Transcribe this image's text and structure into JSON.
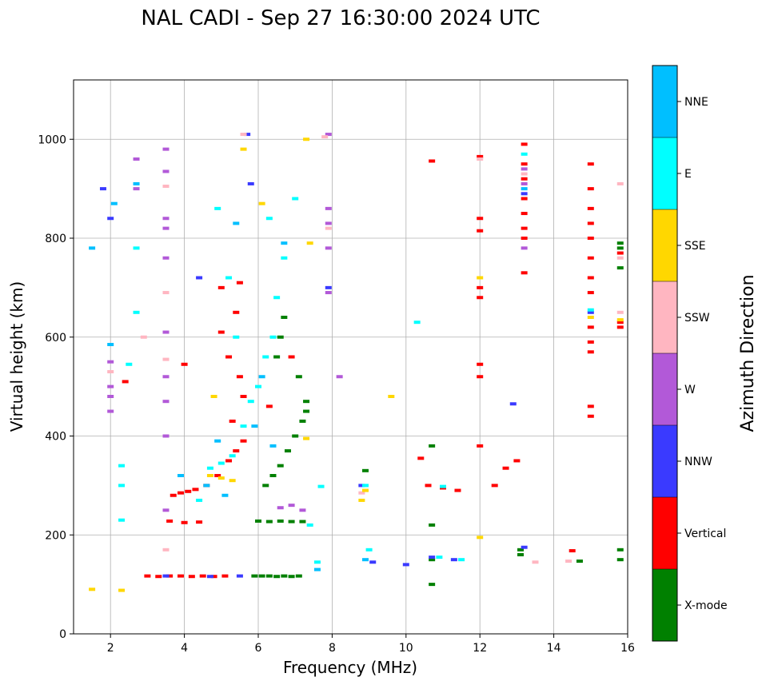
{
  "chart_data": {
    "type": "scatter",
    "title": "NAL CADI - Sep 27 16:30:00 2024 UTC",
    "xlabel": "Frequency (MHz)",
    "ylabel": "Virtual height (km)",
    "xlim": [
      1,
      16
    ],
    "ylim": [
      0,
      1120
    ],
    "xticks": [
      2,
      4,
      6,
      8,
      10,
      12,
      14,
      16
    ],
    "yticks": [
      0,
      200,
      400,
      600,
      800,
      1000
    ],
    "grid": true,
    "colorbar": {
      "label": "Azimuth Direction",
      "categories": [
        {
          "name": "X-mode",
          "color": "#008000"
        },
        {
          "name": "Vertical",
          "color": "#ff0000"
        },
        {
          "name": "NNW",
          "color": "#3a3aff"
        },
        {
          "name": "W",
          "color": "#b259d8"
        },
        {
          "name": "SSW",
          "color": "#ffb6c1"
        },
        {
          "name": "SSE",
          "color": "#ffd700"
        },
        {
          "name": "E",
          "color": "#00ffff"
        },
        {
          "name": "NNE",
          "color": "#00bfff"
        }
      ]
    },
    "series": [
      {
        "name": "X-mode",
        "points": [
          [
            5.9,
            117
          ],
          [
            6.1,
            117
          ],
          [
            6.3,
            117
          ],
          [
            6.5,
            116
          ],
          [
            6.7,
            117
          ],
          [
            6.9,
            116
          ],
          [
            7.1,
            117
          ],
          [
            6.0,
            228
          ],
          [
            6.3,
            227
          ],
          [
            6.6,
            228
          ],
          [
            6.9,
            227
          ],
          [
            7.2,
            227
          ],
          [
            6.2,
            300
          ],
          [
            6.4,
            320
          ],
          [
            6.6,
            340
          ],
          [
            6.8,
            370
          ],
          [
            7.0,
            400
          ],
          [
            7.2,
            430
          ],
          [
            7.3,
            450
          ],
          [
            6.5,
            560
          ],
          [
            6.6,
            600
          ],
          [
            6.7,
            640
          ],
          [
            7.1,
            520
          ],
          [
            7.3,
            470
          ],
          [
            8.9,
            330
          ],
          [
            10.7,
            380
          ],
          [
            10.7,
            220
          ],
          [
            10.7,
            100
          ],
          [
            10.7,
            150
          ],
          [
            13.1,
            160
          ],
          [
            13.1,
            170
          ],
          [
            15.8,
            780
          ],
          [
            15.8,
            790
          ],
          [
            15.8,
            740
          ],
          [
            15.8,
            170
          ],
          [
            15.8,
            150
          ],
          [
            14.7,
            147
          ]
        ]
      },
      {
        "name": "Vertical",
        "points": [
          [
            3.0,
            117
          ],
          [
            3.3,
            116
          ],
          [
            3.6,
            117
          ],
          [
            3.9,
            117
          ],
          [
            4.2,
            116
          ],
          [
            4.5,
            117
          ],
          [
            4.8,
            116
          ],
          [
            5.1,
            117
          ],
          [
            3.7,
            280
          ],
          [
            3.9,
            285
          ],
          [
            4.1,
            288
          ],
          [
            4.3,
            292
          ],
          [
            4.6,
            300
          ],
          [
            4.9,
            320
          ],
          [
            5.2,
            350
          ],
          [
            5.4,
            370
          ],
          [
            5.6,
            390
          ],
          [
            5.3,
            430
          ],
          [
            5.6,
            480
          ],
          [
            5.5,
            520
          ],
          [
            5.2,
            560
          ],
          [
            5.0,
            610
          ],
          [
            5.4,
            650
          ],
          [
            3.6,
            228
          ],
          [
            4.0,
            225
          ],
          [
            4.4,
            226
          ],
          [
            2.4,
            510
          ],
          [
            4.0,
            545
          ],
          [
            5.0,
            700
          ],
          [
            5.5,
            710
          ],
          [
            6.3,
            460
          ],
          [
            6.9,
            560
          ],
          [
            10.7,
            956
          ],
          [
            10.4,
            355
          ],
          [
            10.6,
            300
          ],
          [
            11.0,
            295
          ],
          [
            11.4,
            290
          ],
          [
            12.0,
            965
          ],
          [
            12.0,
            840
          ],
          [
            12.0,
            815
          ],
          [
            12.0,
            700
          ],
          [
            12.0,
            680
          ],
          [
            12.0,
            545
          ],
          [
            12.0,
            520
          ],
          [
            12.0,
            380
          ],
          [
            12.4,
            300
          ],
          [
            12.7,
            335
          ],
          [
            13.0,
            350
          ],
          [
            13.2,
            990
          ],
          [
            13.2,
            850
          ],
          [
            13.2,
            820
          ],
          [
            13.2,
            730
          ],
          [
            13.2,
            950
          ],
          [
            13.2,
            920
          ],
          [
            13.2,
            880
          ],
          [
            13.2,
            800
          ],
          [
            15.0,
            950
          ],
          [
            15.0,
            900
          ],
          [
            15.0,
            860
          ],
          [
            15.0,
            830
          ],
          [
            15.0,
            800
          ],
          [
            15.0,
            760
          ],
          [
            15.0,
            720
          ],
          [
            15.0,
            690
          ],
          [
            15.0,
            620
          ],
          [
            15.0,
            590
          ],
          [
            15.0,
            570
          ],
          [
            15.0,
            460
          ],
          [
            15.0,
            440
          ],
          [
            14.5,
            168
          ],
          [
            15.8,
            770
          ],
          [
            15.8,
            620
          ],
          [
            15.8,
            630
          ]
        ]
      },
      {
        "name": "NNW",
        "points": [
          [
            3.5,
            117
          ],
          [
            4.7,
            116
          ],
          [
            5.5,
            117
          ],
          [
            5.7,
            1010
          ],
          [
            5.8,
            910
          ],
          [
            4.4,
            720
          ],
          [
            2.0,
            840
          ],
          [
            1.8,
            900
          ],
          [
            7.9,
            700
          ],
          [
            8.8,
            300
          ],
          [
            9.1,
            145
          ],
          [
            10.7,
            155
          ],
          [
            11.3,
            150
          ],
          [
            12.9,
            465
          ],
          [
            13.2,
            175
          ],
          [
            13.2,
            890
          ],
          [
            15.0,
            650
          ],
          [
            10.0,
            140
          ]
        ]
      },
      {
        "name": "W",
        "points": [
          [
            2.0,
            550
          ],
          [
            2.0,
            500
          ],
          [
            2.0,
            480
          ],
          [
            2.0,
            450
          ],
          [
            3.5,
            980
          ],
          [
            3.5,
            935
          ],
          [
            3.5,
            840
          ],
          [
            3.5,
            820
          ],
          [
            3.5,
            760
          ],
          [
            3.5,
            610
          ],
          [
            3.5,
            520
          ],
          [
            3.5,
            470
          ],
          [
            3.5,
            400
          ],
          [
            3.5,
            250
          ],
          [
            7.9,
            1010
          ],
          [
            7.9,
            860
          ],
          [
            7.9,
            830
          ],
          [
            7.9,
            780
          ],
          [
            7.9,
            690
          ],
          [
            8.2,
            520
          ],
          [
            6.6,
            255
          ],
          [
            6.9,
            260
          ],
          [
            7.2,
            250
          ],
          [
            13.2,
            940
          ],
          [
            13.2,
            910
          ],
          [
            13.2,
            780
          ],
          [
            2.7,
            900
          ],
          [
            2.7,
            960
          ]
        ]
      },
      {
        "name": "SSW",
        "points": [
          [
            2.0,
            530
          ],
          [
            3.5,
            905
          ],
          [
            3.5,
            690
          ],
          [
            3.5,
            555
          ],
          [
            3.5,
            170
          ],
          [
            5.6,
            1010
          ],
          [
            7.8,
            1005
          ],
          [
            7.9,
            820
          ],
          [
            8.8,
            285
          ],
          [
            12.0,
            960
          ],
          [
            13.2,
            930
          ],
          [
            13.5,
            145
          ],
          [
            14.4,
            147
          ],
          [
            15.8,
            910
          ],
          [
            15.8,
            760
          ],
          [
            15.8,
            650
          ],
          [
            2.9,
            600
          ]
        ]
      },
      {
        "name": "SSE",
        "points": [
          [
            1.5,
            90
          ],
          [
            2.3,
            88
          ],
          [
            5.6,
            980
          ],
          [
            7.3,
            1000
          ],
          [
            7.4,
            790
          ],
          [
            5.3,
            310
          ],
          [
            5.0,
            315
          ],
          [
            4.7,
            320
          ],
          [
            4.8,
            480
          ],
          [
            6.1,
            870
          ],
          [
            8.8,
            270
          ],
          [
            8.9,
            290
          ],
          [
            9.6,
            480
          ],
          [
            12.0,
            720
          ],
          [
            12.0,
            195
          ],
          [
            15.0,
            640
          ],
          [
            15.8,
            635
          ],
          [
            7.3,
            395
          ]
        ]
      },
      {
        "name": "E",
        "points": [
          [
            2.3,
            340
          ],
          [
            2.3,
            300
          ],
          [
            2.3,
            230
          ],
          [
            2.7,
            650
          ],
          [
            2.7,
            780
          ],
          [
            2.5,
            545
          ],
          [
            4.4,
            270
          ],
          [
            4.7,
            335
          ],
          [
            5.0,
            345
          ],
          [
            5.3,
            360
          ],
          [
            5.6,
            420
          ],
          [
            5.8,
            470
          ],
          [
            6.0,
            500
          ],
          [
            6.2,
            560
          ],
          [
            6.4,
            600
          ],
          [
            6.5,
            680
          ],
          [
            6.7,
            760
          ],
          [
            5.4,
            600
          ],
          [
            5.2,
            720
          ],
          [
            4.9,
            860
          ],
          [
            6.3,
            840
          ],
          [
            7.0,
            880
          ],
          [
            8.9,
            300
          ],
          [
            9.0,
            170
          ],
          [
            10.3,
            630
          ],
          [
            10.9,
            155
          ],
          [
            11.0,
            298
          ],
          [
            11.5,
            150
          ],
          [
            13.2,
            970
          ],
          [
            15.0,
            655
          ],
          [
            7.6,
            145
          ],
          [
            7.4,
            220
          ],
          [
            7.7,
            298
          ]
        ]
      },
      {
        "name": "NNE",
        "points": [
          [
            1.5,
            780
          ],
          [
            2.1,
            870
          ],
          [
            2.7,
            910
          ],
          [
            5.9,
            420
          ],
          [
            6.1,
            520
          ],
          [
            6.4,
            380
          ],
          [
            4.6,
            300
          ],
          [
            5.1,
            280
          ],
          [
            4.9,
            390
          ],
          [
            8.9,
            150
          ],
          [
            13.2,
            900
          ],
          [
            7.6,
            130
          ],
          [
            3.9,
            320
          ],
          [
            5.4,
            830
          ],
          [
            6.7,
            790
          ],
          [
            2.0,
            585
          ]
        ]
      }
    ]
  }
}
